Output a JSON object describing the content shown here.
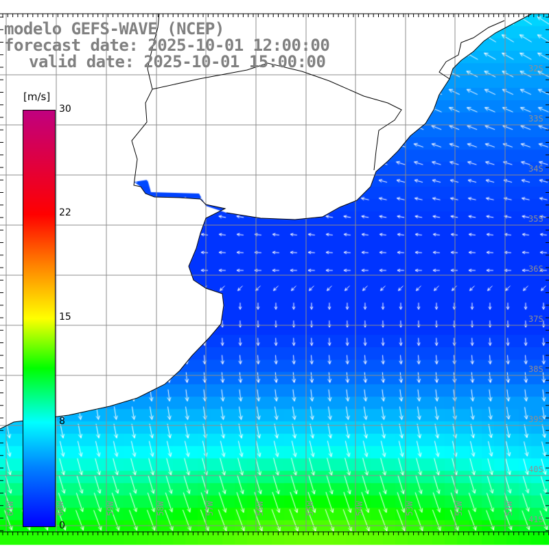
{
  "title": {
    "model": "modelo GEFS-WAVE (NCEP)",
    "forecast": "forecast date: 2025-10-01 12:00:00",
    "valid": "valid date: 2025-10-01 15:00:00"
  },
  "colorbar": {
    "unit": "[m/s]",
    "ticks": [
      "30",
      "22",
      "15",
      "8",
      "0"
    ],
    "colors": [
      "#c0007f",
      "#ff0000",
      "#ffff00",
      "#00ffff",
      "#0000ff"
    ]
  },
  "lat_labels": [
    "32S",
    "33S",
    "34S",
    "35S",
    "36S",
    "37S",
    "38S",
    "39S",
    "40S",
    "41S"
  ],
  "lon_labels": [
    "61W",
    "60W",
    "59W",
    "58W",
    "57W",
    "56W",
    "55W",
    "54W",
    "53W",
    "52W",
    "51W"
  ]
}
